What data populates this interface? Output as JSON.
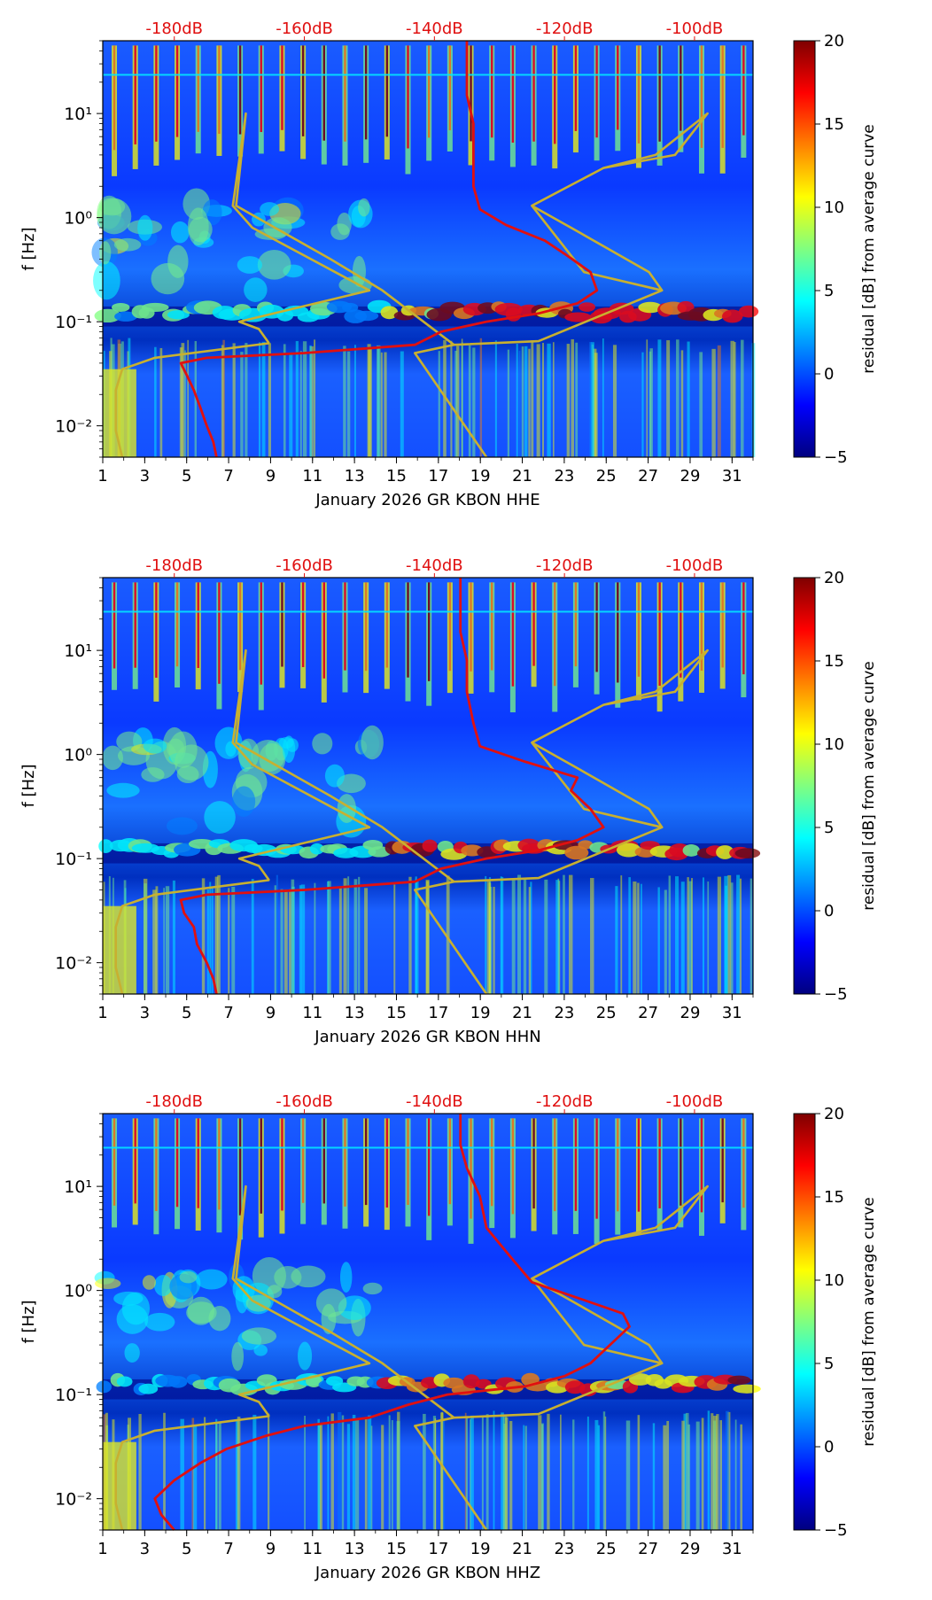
{
  "colors": {
    "noise_curve": "#e01010",
    "model_curve": "#c8b030",
    "top_db_label": "#e01010",
    "colormap": [
      "#00007f",
      "#0000ff",
      "#0080ff",
      "#00ffff",
      "#80ff80",
      "#ffff00",
      "#ff8000",
      "#ff0000",
      "#7f0000"
    ]
  },
  "colorbar": {
    "label": "residual [dB] from average curve",
    "ticks": [
      "20",
      "15",
      "10",
      "5",
      "0",
      "−5"
    ],
    "range": [
      -5,
      20
    ]
  },
  "chart_data": [
    {
      "type": "heatmap",
      "channel": "HHE",
      "xlabel": "January 2026 GR KBON  HHE",
      "ylabel": "f [Hz]",
      "xlim": [
        1,
        32
      ],
      "ylim_hz": [
        0.005,
        50
      ],
      "x_ticks": [
        "1",
        "3",
        "5",
        "7",
        "9",
        "11",
        "13",
        "15",
        "17",
        "19",
        "21",
        "23",
        "25",
        "27",
        "29",
        "31"
      ],
      "y_ticks": [
        "10¹",
        "10⁰",
        "10⁻¹",
        "10⁻²"
      ],
      "top_axis": {
        "labels": [
          "-180dB",
          "-160dB",
          "-140dB",
          "-120dB",
          "-100dB"
        ],
        "values_db": [
          -180,
          -160,
          -140,
          -120,
          -100
        ],
        "range_db": [
          -191,
          -91
        ]
      },
      "noise_curve_db": [
        [
          -173.5,
          0.005
        ],
        [
          -174,
          0.007
        ],
        [
          -175,
          0.01
        ],
        [
          -176,
          0.015
        ],
        [
          -177,
          0.022
        ],
        [
          -178,
          0.03
        ],
        [
          -179,
          0.04
        ],
        [
          -175,
          0.045
        ],
        [
          -160,
          0.05
        ],
        [
          -143,
          0.06
        ],
        [
          -139,
          0.08
        ],
        [
          -132,
          0.1
        ],
        [
          -124,
          0.12
        ],
        [
          -118,
          0.15
        ],
        [
          -115,
          0.2
        ],
        [
          -116,
          0.3
        ],
        [
          -120,
          0.45
        ],
        [
          -123,
          0.6
        ],
        [
          -129,
          0.85
        ],
        [
          -133,
          1.2
        ],
        [
          -134,
          2
        ],
        [
          -134,
          4
        ],
        [
          -134,
          8
        ],
        [
          -135,
          15
        ],
        [
          -135,
          25
        ],
        [
          -135,
          40
        ],
        [
          -135,
          50
        ]
      ],
      "model_curve_db": [
        [
          -188,
          0.005
        ],
        [
          -189,
          0.009
        ],
        [
          -189,
          0.022
        ],
        [
          -188,
          0.035
        ],
        [
          -183,
          0.045
        ],
        [
          -165.5,
          0.062
        ],
        [
          -165.5,
          0.063
        ],
        [
          -167,
          0.085
        ],
        [
          -170,
          0.1
        ],
        [
          -150,
          0.2
        ],
        [
          -168,
          0.8
        ],
        [
          -171,
          1.3
        ],
        [
          -169,
          10
        ],
        [
          -170.5,
          1.3
        ],
        [
          -156,
          0.4
        ],
        [
          -148,
          0.2
        ],
        [
          -137,
          0.06
        ],
        [
          -124,
          0.065
        ],
        [
          -105,
          0.2
        ],
        [
          -107,
          0.3
        ],
        [
          -119,
          0.8
        ],
        [
          -125,
          1.3
        ],
        [
          -114,
          3
        ],
        [
          -106,
          4
        ],
        [
          -98,
          10
        ],
        [
          -103,
          4
        ],
        [
          -114,
          3
        ],
        [
          -125,
          1.3
        ],
        [
          -117,
          0.3
        ],
        [
          -105,
          0.2
        ],
        [
          -124,
          0.065
        ],
        [
          -137,
          0.06
        ],
        [
          -143,
          0.05
        ],
        [
          -132,
          0.005
        ]
      ]
    },
    {
      "type": "heatmap",
      "channel": "HHN",
      "xlabel": "January 2026 GR KBON  HHN",
      "ylabel": "f [Hz]",
      "xlim": [
        1,
        32
      ],
      "ylim_hz": [
        0.005,
        50
      ],
      "x_ticks": [
        "1",
        "3",
        "5",
        "7",
        "9",
        "11",
        "13",
        "15",
        "17",
        "19",
        "21",
        "23",
        "25",
        "27",
        "29",
        "31"
      ],
      "y_ticks": [
        "10¹",
        "10⁰",
        "10⁻¹",
        "10⁻²"
      ],
      "top_axis": {
        "labels": [
          "-180dB",
          "-160dB",
          "-140dB",
          "-120dB",
          "-100dB"
        ],
        "values_db": [
          -180,
          -160,
          -140,
          -120,
          -100
        ],
        "range_db": [
          -191,
          -91
        ]
      },
      "noise_curve_db": [
        [
          -173.5,
          0.005
        ],
        [
          -174,
          0.007
        ],
        [
          -175,
          0.01
        ],
        [
          -176.5,
          0.015
        ],
        [
          -177,
          0.022
        ],
        [
          -178.5,
          0.03
        ],
        [
          -179,
          0.04
        ],
        [
          -175,
          0.045
        ],
        [
          -160,
          0.05
        ],
        [
          -143,
          0.06
        ],
        [
          -139,
          0.08
        ],
        [
          -132,
          0.1
        ],
        [
          -124,
          0.12
        ],
        [
          -118,
          0.15
        ],
        [
          -114,
          0.2
        ],
        [
          -116,
          0.3
        ],
        [
          -119,
          0.45
        ],
        [
          -118,
          0.6
        ],
        [
          -126,
          0.85
        ],
        [
          -133,
          1.2
        ],
        [
          -134,
          2
        ],
        [
          -135,
          4
        ],
        [
          -135,
          8
        ],
        [
          -136,
          15
        ],
        [
          -136,
          25
        ],
        [
          -136,
          40
        ],
        [
          -136,
          50
        ]
      ],
      "model_curve_db": [
        [
          -188,
          0.005
        ],
        [
          -189,
          0.009
        ],
        [
          -189,
          0.022
        ],
        [
          -188,
          0.035
        ],
        [
          -183,
          0.045
        ],
        [
          -165.5,
          0.062
        ],
        [
          -165.5,
          0.063
        ],
        [
          -167,
          0.085
        ],
        [
          -170,
          0.1
        ],
        [
          -150,
          0.2
        ],
        [
          -168,
          0.8
        ],
        [
          -171,
          1.3
        ],
        [
          -169,
          10
        ],
        [
          -170.5,
          1.3
        ],
        [
          -156,
          0.4
        ],
        [
          -148,
          0.2
        ],
        [
          -137,
          0.06
        ],
        [
          -124,
          0.065
        ],
        [
          -105,
          0.2
        ],
        [
          -107,
          0.3
        ],
        [
          -119,
          0.8
        ],
        [
          -125,
          1.3
        ],
        [
          -114,
          3
        ],
        [
          -106,
          4
        ],
        [
          -98,
          10
        ],
        [
          -103,
          4
        ],
        [
          -114,
          3
        ],
        [
          -125,
          1.3
        ],
        [
          -117,
          0.3
        ],
        [
          -105,
          0.2
        ],
        [
          -124,
          0.065
        ],
        [
          -137,
          0.06
        ],
        [
          -143,
          0.05
        ],
        [
          -132,
          0.005
        ]
      ]
    },
    {
      "type": "heatmap",
      "channel": "HHZ",
      "xlabel": "January 2026 GR KBON  HHZ",
      "ylabel": "f [Hz]",
      "xlim": [
        1,
        32
      ],
      "ylim_hz": [
        0.005,
        50
      ],
      "x_ticks": [
        "1",
        "3",
        "5",
        "7",
        "9",
        "11",
        "13",
        "15",
        "17",
        "19",
        "21",
        "23",
        "25",
        "27",
        "29",
        "31"
      ],
      "y_ticks": [
        "10¹",
        "10⁰",
        "10⁻¹",
        "10⁻²"
      ],
      "top_axis": {
        "labels": [
          "-180dB",
          "-160dB",
          "-140dB",
          "-120dB",
          "-100dB"
        ],
        "values_db": [
          -180,
          -160,
          -140,
          -120,
          -100
        ],
        "range_db": [
          -191,
          -91
        ]
      },
      "noise_curve_db": [
        [
          -180,
          0.005
        ],
        [
          -182,
          0.007
        ],
        [
          -183,
          0.01
        ],
        [
          -180,
          0.015
        ],
        [
          -176,
          0.022
        ],
        [
          -172,
          0.03
        ],
        [
          -166,
          0.04
        ],
        [
          -160,
          0.05
        ],
        [
          -150,
          0.06
        ],
        [
          -144,
          0.08
        ],
        [
          -138,
          0.1
        ],
        [
          -126,
          0.12
        ],
        [
          -120,
          0.15
        ],
        [
          -116,
          0.2
        ],
        [
          -113,
          0.3
        ],
        [
          -110,
          0.45
        ],
        [
          -111,
          0.6
        ],
        [
          -118,
          0.85
        ],
        [
          -125,
          1.2
        ],
        [
          -128,
          2
        ],
        [
          -132,
          4
        ],
        [
          -133,
          8
        ],
        [
          -135,
          15
        ],
        [
          -136,
          25
        ],
        [
          -136,
          40
        ],
        [
          -136,
          50
        ]
      ],
      "model_curve_db": [
        [
          -188,
          0.005
        ],
        [
          -189,
          0.009
        ],
        [
          -189,
          0.022
        ],
        [
          -188,
          0.035
        ],
        [
          -183,
          0.045
        ],
        [
          -165.5,
          0.062
        ],
        [
          -165.5,
          0.063
        ],
        [
          -167,
          0.085
        ],
        [
          -170,
          0.1
        ],
        [
          -150,
          0.2
        ],
        [
          -168,
          0.8
        ],
        [
          -171,
          1.3
        ],
        [
          -169,
          10
        ],
        [
          -170.5,
          1.3
        ],
        [
          -156,
          0.4
        ],
        [
          -148,
          0.2
        ],
        [
          -137,
          0.06
        ],
        [
          -124,
          0.065
        ],
        [
          -105,
          0.2
        ],
        [
          -107,
          0.3
        ],
        [
          -119,
          0.8
        ],
        [
          -125,
          1.3
        ],
        [
          -114,
          3
        ],
        [
          -106,
          4
        ],
        [
          -98,
          10
        ],
        [
          -103,
          4
        ],
        [
          -114,
          3
        ],
        [
          -125,
          1.3
        ],
        [
          -117,
          0.3
        ],
        [
          -105,
          0.2
        ],
        [
          -124,
          0.065
        ],
        [
          -137,
          0.06
        ],
        [
          -143,
          0.05
        ],
        [
          -132,
          0.005
        ]
      ]
    }
  ]
}
